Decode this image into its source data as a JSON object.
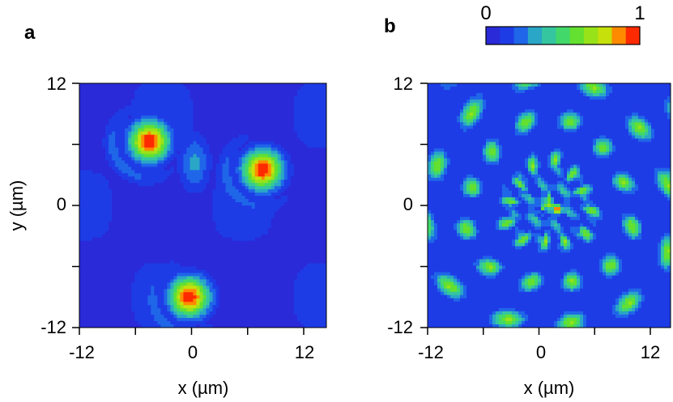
{
  "chart_data": {
    "type": "heatmap",
    "colorbar": {
      "min_label": "0",
      "max_label": "1",
      "colors": [
        "#2a2ad8",
        "#1e3ce6",
        "#1f66e8",
        "#2aa6c6",
        "#35c6a0",
        "#42d86a",
        "#63e030",
        "#98e21a",
        "#c6e00c",
        "#ff8a00",
        "#ff2a00"
      ]
    },
    "panels": [
      {
        "label": "a",
        "xlabel": "x (µm)",
        "ylabel": "y (µm)",
        "xlim": [
          -12,
          12
        ],
        "ylim": [
          -12,
          12
        ],
        "xticks": [
          "-12",
          "0",
          "12"
        ],
        "yticks": [
          "12",
          "0",
          "-12"
        ],
        "background_level": 0.08,
        "spots": [
          {
            "x": -5.2,
            "y": 6.3,
            "peak": 1.0
          },
          {
            "x": 5.8,
            "y": 3.5,
            "peak": 1.0
          },
          {
            "x": -1.3,
            "y": -9.0,
            "peak": 1.0
          }
        ]
      },
      {
        "label": "b",
        "xlabel": "x (µm)",
        "ylabel": "",
        "xlim": [
          -12,
          12
        ],
        "ylim": [
          -12,
          12
        ],
        "xticks": [
          "-12",
          "0",
          "12"
        ],
        "yticks": [
          "12",
          "0",
          "-12"
        ],
        "background_level": 0.1,
        "peak": {
          "x": 0.8,
          "y": -0.4,
          "value": 1.0
        }
      }
    ]
  }
}
